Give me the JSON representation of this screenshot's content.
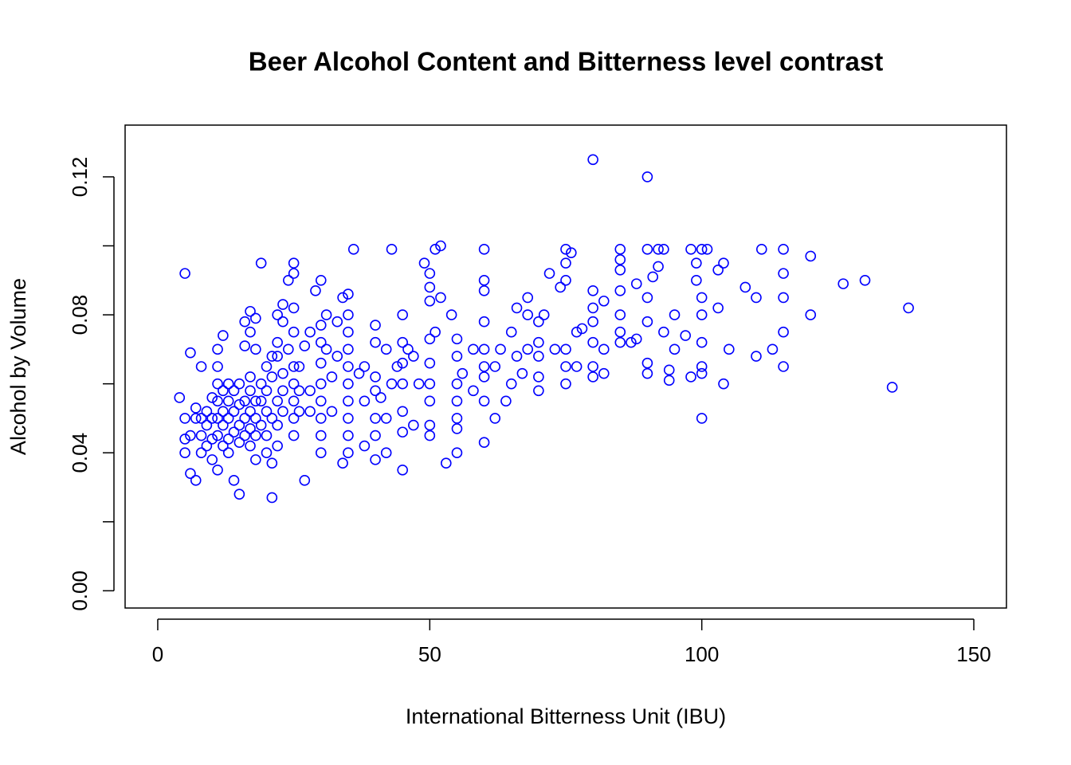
{
  "chart_data": {
    "type": "scatter",
    "title": "Beer Alcohol Content and Bitterness level contrast",
    "x_label": "International Bitterness Unit (IBU)",
    "y_label": "Alcohol by Volume",
    "xlim": [
      -6,
      156
    ],
    "ylim": [
      -0.005,
      0.135
    ],
    "xticks": [
      0,
      50,
      100,
      150
    ],
    "yticks": [
      {
        "value": 0,
        "label": "0.00"
      },
      0.04,
      0.08,
      0.12
    ],
    "y_minor_ticks": [
      0.02,
      0.06,
      0.1
    ],
    "grid": false,
    "series": [
      {
        "color": "#0000ff",
        "x": [
          80,
          90,
          138,
          135,
          130,
          126,
          120,
          120,
          115,
          115,
          115,
          115,
          115,
          111,
          113,
          110,
          110,
          108,
          104,
          104,
          105,
          103,
          103,
          101,
          100,
          100,
          100,
          100,
          100,
          100,
          100,
          99,
          99,
          98,
          98,
          97,
          95,
          95,
          94,
          94,
          93,
          93,
          92,
          92,
          91,
          90,
          90,
          90,
          90,
          90,
          88,
          88,
          87,
          85,
          85,
          85,
          85,
          85,
          85,
          85,
          82,
          82,
          82,
          80,
          80,
          80,
          80,
          80,
          80,
          78,
          77,
          77,
          76,
          75,
          75,
          75,
          75,
          75,
          75,
          74,
          73,
          72,
          71,
          70,
          70,
          70,
          70,
          70,
          68,
          68,
          68,
          67,
          66,
          66,
          65,
          65,
          64,
          63,
          62,
          62,
          60,
          60,
          60,
          60,
          60,
          60,
          60,
          60,
          60,
          58,
          58,
          56,
          55,
          55,
          55,
          55,
          55,
          55,
          55,
          54,
          53,
          52,
          52,
          51,
          51,
          50,
          50,
          50,
          50,
          50,
          50,
          50,
          50,
          50,
          49,
          48,
          47,
          47,
          46,
          45,
          45,
          45,
          45,
          45,
          45,
          45,
          44,
          43,
          43,
          42,
          42,
          42,
          41,
          40,
          40,
          40,
          40,
          40,
          40,
          40,
          38,
          38,
          38,
          37,
          36,
          35,
          35,
          35,
          35,
          35,
          35,
          35,
          35,
          35,
          35,
          34,
          34,
          33,
          33,
          32,
          32,
          31,
          31,
          30,
          30,
          30,
          30,
          30,
          30,
          30,
          30,
          30,
          29,
          28,
          28,
          28,
          27,
          27,
          26,
          26,
          26,
          25,
          25,
          25,
          25,
          25,
          25,
          25,
          25,
          25,
          24,
          24,
          23,
          23,
          23,
          23,
          23,
          22,
          22,
          22,
          22,
          22,
          22,
          21,
          21,
          21,
          21,
          21,
          20,
          20,
          20,
          20,
          20,
          19,
          19,
          19,
          19,
          18,
          18,
          18,
          18,
          18,
          18,
          17,
          17,
          17,
          17,
          17,
          17,
          17,
          16,
          16,
          16,
          16,
          16,
          15,
          15,
          15,
          15,
          15,
          14,
          14,
          14,
          14,
          13,
          13,
          13,
          13,
          13,
          12,
          12,
          12,
          12,
          12,
          11,
          11,
          11,
          11,
          11,
          11,
          11,
          10,
          10,
          10,
          10,
          9,
          9,
          9,
          8,
          8,
          8,
          8,
          7,
          7,
          7,
          6,
          6,
          6,
          5,
          5,
          5,
          5,
          4
        ],
        "values": [
          0.125,
          0.12,
          0.082,
          0.059,
          0.09,
          0.089,
          0.097,
          0.08,
          0.099,
          0.092,
          0.085,
          0.075,
          0.065,
          0.099,
          0.07,
          0.085,
          0.068,
          0.088,
          0.095,
          0.06,
          0.07,
          0.082,
          0.093,
          0.099,
          0.099,
          0.085,
          0.08,
          0.072,
          0.065,
          0.063,
          0.05,
          0.09,
          0.095,
          0.099,
          0.062,
          0.074,
          0.08,
          0.07,
          0.061,
          0.064,
          0.099,
          0.075,
          0.099,
          0.094,
          0.091,
          0.099,
          0.085,
          0.066,
          0.063,
          0.078,
          0.089,
          0.073,
          0.072,
          0.099,
          0.096,
          0.093,
          0.087,
          0.08,
          0.075,
          0.072,
          0.084,
          0.07,
          0.063,
          0.087,
          0.082,
          0.078,
          0.072,
          0.065,
          0.062,
          0.076,
          0.075,
          0.065,
          0.098,
          0.099,
          0.095,
          0.09,
          0.07,
          0.065,
          0.06,
          0.088,
          0.07,
          0.092,
          0.08,
          0.078,
          0.072,
          0.068,
          0.062,
          0.058,
          0.085,
          0.08,
          0.07,
          0.063,
          0.082,
          0.068,
          0.075,
          0.06,
          0.055,
          0.07,
          0.065,
          0.05,
          0.099,
          0.09,
          0.087,
          0.078,
          0.07,
          0.065,
          0.062,
          0.055,
          0.043,
          0.07,
          0.058,
          0.063,
          0.073,
          0.068,
          0.06,
          0.055,
          0.05,
          0.047,
          0.04,
          0.08,
          0.037,
          0.1,
          0.085,
          0.099,
          0.075,
          0.092,
          0.088,
          0.084,
          0.073,
          0.066,
          0.06,
          0.055,
          0.048,
          0.045,
          0.095,
          0.06,
          0.068,
          0.048,
          0.07,
          0.08,
          0.072,
          0.066,
          0.06,
          0.052,
          0.046,
          0.035,
          0.065,
          0.099,
          0.06,
          0.07,
          0.05,
          0.04,
          0.056,
          0.077,
          0.072,
          0.062,
          0.058,
          0.05,
          0.045,
          0.038,
          0.065,
          0.055,
          0.042,
          0.063,
          0.099,
          0.086,
          0.08,
          0.075,
          0.07,
          0.065,
          0.06,
          0.055,
          0.05,
          0.045,
          0.04,
          0.085,
          0.037,
          0.078,
          0.068,
          0.062,
          0.052,
          0.08,
          0.07,
          0.09,
          0.077,
          0.072,
          0.066,
          0.06,
          0.055,
          0.05,
          0.045,
          0.04,
          0.087,
          0.075,
          0.058,
          0.052,
          0.071,
          0.032,
          0.065,
          0.058,
          0.052,
          0.095,
          0.092,
          0.082,
          0.075,
          0.065,
          0.06,
          0.055,
          0.05,
          0.045,
          0.09,
          0.07,
          0.083,
          0.078,
          0.063,
          0.058,
          0.052,
          0.08,
          0.072,
          0.068,
          0.055,
          0.048,
          0.042,
          0.068,
          0.062,
          0.05,
          0.037,
          0.027,
          0.065,
          0.058,
          0.052,
          0.045,
          0.04,
          0.095,
          0.06,
          0.055,
          0.048,
          0.079,
          0.07,
          0.055,
          0.05,
          0.045,
          0.038,
          0.081,
          0.075,
          0.062,
          0.058,
          0.052,
          0.047,
          0.042,
          0.078,
          0.071,
          0.055,
          0.05,
          0.045,
          0.06,
          0.054,
          0.048,
          0.043,
          0.028,
          0.058,
          0.052,
          0.046,
          0.032,
          0.06,
          0.055,
          0.05,
          0.044,
          0.04,
          0.074,
          0.058,
          0.052,
          0.048,
          0.042,
          0.07,
          0.065,
          0.06,
          0.055,
          0.05,
          0.045,
          0.035,
          0.056,
          0.05,
          0.044,
          0.038,
          0.052,
          0.048,
          0.042,
          0.065,
          0.05,
          0.045,
          0.04,
          0.053,
          0.05,
          0.032,
          0.069,
          0.045,
          0.034,
          0.092,
          0.05,
          0.044,
          0.04,
          0.056
        ]
      }
    ]
  }
}
